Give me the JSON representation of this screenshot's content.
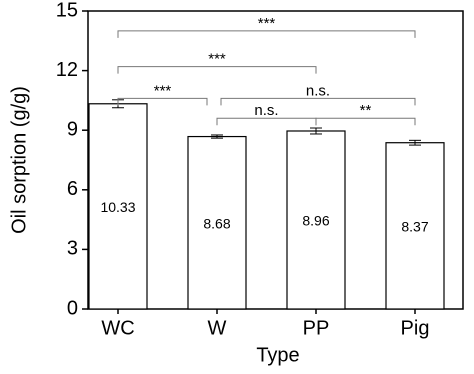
{
  "chart_data": {
    "type": "bar",
    "x_label": "Type",
    "y_label": "Oil sorption (g/g)",
    "categories": [
      "WC",
      "W",
      "PP",
      "Pig"
    ],
    "values": [
      10.33,
      8.68,
      8.96,
      8.37
    ],
    "errors": [
      0.2,
      0.08,
      0.15,
      0.12
    ],
    "color": "#ffffff",
    "ylim": [
      0,
      15
    ],
    "yticks": [
      0,
      3,
      6,
      9,
      12,
      15
    ],
    "annotations": [
      {
        "text": "***",
        "from": 0,
        "to": 3,
        "y": 14.0
      },
      {
        "text": "***",
        "from": 0,
        "to": 2,
        "y": 12.2
      },
      {
        "text": "***",
        "from": 0,
        "to": 1,
        "y": 10.6
      },
      {
        "text": "n.s.",
        "from": 1,
        "to": 3,
        "y": 10.6
      },
      {
        "text": "n.s.",
        "from": 1,
        "to": 2,
        "y": 9.6
      },
      {
        "text": "**",
        "from": 2,
        "to": 3,
        "y": 9.6
      }
    ]
  }
}
